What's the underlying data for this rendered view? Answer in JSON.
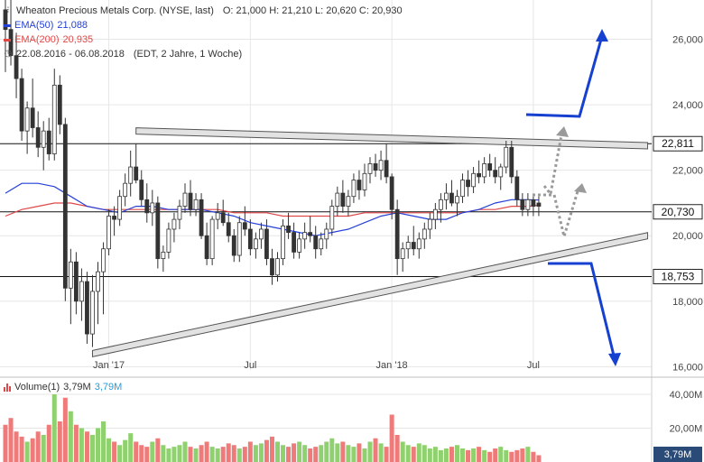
{
  "header": {
    "title": "Wheaton Precious Metals Corp. (NYSE, last)",
    "ohlc": "O: 21,000  H: 21,210  L: 20,620  C: 20,930",
    "ema50_label": "EMA(50)",
    "ema50_value": "21,088",
    "ema200_label": "EMA(200)",
    "ema200_value": "20,935",
    "range_label": "22.08.2016 - 06.08.2018",
    "range_info": "(EDT, 2 Jahre, 1 Woche)"
  },
  "volume_legend": {
    "label": "Volume(1)",
    "value1": "3,79M",
    "value2": "3,79M"
  },
  "colors": {
    "up": "#3aaa35",
    "down": "#e03535",
    "ema50": "#2540d8",
    "ema200": "#e04848",
    "arrow": "#1540d0",
    "axis_text": "#444444",
    "grid": "#e6e6e6",
    "vol_up": "#8fd16f",
    "vol_down": "#ef7a7a",
    "badge": "#2a4a78"
  },
  "chart_data": {
    "type": "candlestick",
    "title": "Wheaton Precious Metals Corp. (NYSE, last)",
    "yticks": [
      16,
      18,
      20,
      22,
      24,
      26
    ],
    "ytick_labels": [
      "16,000",
      "18,000",
      "20,000",
      "22,000",
      "24,000",
      "26,000"
    ],
    "ylim": [
      15.9,
      27.2
    ],
    "xtick_labels": [
      {
        "label": "Jan '17",
        "week": 19
      },
      {
        "label": "Jul",
        "week": 45
      },
      {
        "label": "Jan '18",
        "week": 71
      },
      {
        "label": "Jul",
        "week": 97
      }
    ],
    "horizontal_levels": [
      {
        "value": 22.811,
        "label": "22,811"
      },
      {
        "value": 20.73,
        "label": "20,730"
      },
      {
        "value": 18.753,
        "label": "18,753"
      }
    ],
    "trendlines": [
      {
        "name": "upper",
        "from": [
          24,
          23.2
        ],
        "to": [
          118,
          22.75
        ]
      },
      {
        "name": "lower",
        "from": [
          16,
          16.4
        ],
        "to": [
          118,
          20.0
        ]
      }
    ],
    "candles": [
      [
        0,
        26.9,
        28.3,
        25.0,
        26.3
      ],
      [
        1,
        26.3,
        27.6,
        25.2,
        25.5
      ],
      [
        2,
        25.5,
        26.2,
        24.2,
        24.8
      ],
      [
        3,
        24.8,
        25.1,
        22.9,
        23.2
      ],
      [
        4,
        23.2,
        24.1,
        22.5,
        23.9
      ],
      [
        5,
        23.9,
        24.8,
        23.0,
        23.3
      ],
      [
        6,
        23.3,
        23.8,
        22.4,
        22.7
      ],
      [
        7,
        22.7,
        23.5,
        22.0,
        23.2
      ],
      [
        8,
        23.2,
        23.6,
        22.3,
        22.5
      ],
      [
        9,
        22.5,
        25.1,
        22.3,
        24.6
      ],
      [
        10,
        24.6,
        24.9,
        23.1,
        23.4
      ],
      [
        11,
        23.4,
        23.6,
        18.0,
        18.4
      ],
      [
        12,
        18.4,
        19.6,
        17.3,
        19.2
      ],
      [
        13,
        19.2,
        19.5,
        17.6,
        18.0
      ],
      [
        14,
        18.0,
        19.0,
        17.4,
        18.6
      ],
      [
        15,
        18.6,
        18.9,
        16.7,
        17.0
      ],
      [
        16,
        17.0,
        18.8,
        16.6,
        18.3
      ],
      [
        17,
        18.3,
        19.2,
        17.3,
        18.9
      ],
      [
        18,
        18.9,
        19.8,
        17.6,
        19.6
      ],
      [
        19,
        19.6,
        20.8,
        19.4,
        20.6
      ],
      [
        20,
        20.6,
        20.9,
        20.0,
        20.5
      ],
      [
        21,
        20.5,
        21.4,
        20.3,
        21.2
      ],
      [
        22,
        21.2,
        21.9,
        20.9,
        21.6
      ],
      [
        23,
        21.6,
        22.6,
        21.2,
        22.1
      ],
      [
        24,
        22.1,
        22.8,
        21.6,
        21.7
      ],
      [
        25,
        21.7,
        22.0,
        20.9,
        21.1
      ],
      [
        26,
        21.1,
        21.6,
        20.4,
        20.7
      ],
      [
        27,
        20.7,
        21.4,
        20.3,
        21.0
      ],
      [
        28,
        21.0,
        21.2,
        19.0,
        19.3
      ],
      [
        29,
        19.3,
        19.7,
        18.9,
        19.5
      ],
      [
        30,
        19.5,
        20.4,
        19.3,
        20.2
      ],
      [
        31,
        20.2,
        20.7,
        19.8,
        20.5
      ],
      [
        32,
        20.5,
        21.1,
        20.2,
        20.9
      ],
      [
        33,
        20.9,
        21.6,
        20.7,
        21.3
      ],
      [
        34,
        21.3,
        21.7,
        20.6,
        20.8
      ],
      [
        35,
        20.8,
        21.3,
        20.6,
        21.1
      ],
      [
        36,
        21.1,
        21.3,
        19.9,
        20.0
      ],
      [
        37,
        20.0,
        20.4,
        19.1,
        19.3
      ],
      [
        38,
        19.3,
        20.6,
        19.1,
        20.5
      ],
      [
        39,
        20.5,
        21.0,
        20.2,
        20.7
      ],
      [
        40,
        20.7,
        21.1,
        20.3,
        20.4
      ],
      [
        41,
        20.4,
        20.7,
        19.8,
        20.0
      ],
      [
        42,
        20.0,
        20.2,
        19.2,
        19.4
      ],
      [
        43,
        19.4,
        20.6,
        19.2,
        20.4
      ],
      [
        44,
        20.4,
        20.9,
        20.0,
        20.2
      ],
      [
        45,
        20.2,
        20.5,
        19.4,
        19.6
      ],
      [
        46,
        19.6,
        20.1,
        19.3,
        19.9
      ],
      [
        47,
        19.9,
        20.4,
        19.6,
        20.2
      ],
      [
        48,
        20.2,
        20.5,
        19.1,
        19.3
      ],
      [
        49,
        19.3,
        19.6,
        18.5,
        18.8
      ],
      [
        50,
        18.8,
        19.5,
        18.6,
        19.3
      ],
      [
        51,
        19.3,
        20.5,
        19.1,
        20.3
      ],
      [
        52,
        20.3,
        20.7,
        19.9,
        20.1
      ],
      [
        53,
        20.1,
        20.4,
        19.3,
        19.5
      ],
      [
        54,
        19.5,
        20.1,
        19.3,
        19.9
      ],
      [
        55,
        19.9,
        20.4,
        19.6,
        20.1
      ],
      [
        56,
        20.1,
        20.6,
        19.8,
        20.0
      ],
      [
        57,
        20.0,
        20.3,
        19.3,
        19.6
      ],
      [
        58,
        19.6,
        20.1,
        19.4,
        19.9
      ],
      [
        59,
        19.9,
        20.4,
        19.6,
        20.2
      ],
      [
        60,
        20.2,
        21.1,
        20.0,
        20.9
      ],
      [
        61,
        20.9,
        21.5,
        20.6,
        21.3
      ],
      [
        62,
        21.3,
        21.7,
        20.7,
        20.9
      ],
      [
        63,
        20.9,
        21.4,
        20.6,
        21.2
      ],
      [
        64,
        21.2,
        21.9,
        21.0,
        21.7
      ],
      [
        65,
        21.7,
        22.0,
        21.1,
        21.4
      ],
      [
        66,
        21.4,
        22.2,
        21.2,
        21.9
      ],
      [
        67,
        21.9,
        22.4,
        21.6,
        22.2
      ],
      [
        68,
        22.2,
        22.5,
        21.8,
        22.0
      ],
      [
        69,
        22.0,
        22.6,
        21.7,
        22.3
      ],
      [
        70,
        22.3,
        22.8,
        21.6,
        21.8
      ],
      [
        71,
        21.8,
        21.9,
        20.5,
        20.8
      ],
      [
        72,
        20.8,
        21.1,
        18.8,
        19.3
      ],
      [
        73,
        19.3,
        19.8,
        18.9,
        19.6
      ],
      [
        74,
        19.6,
        20.0,
        19.3,
        19.8
      ],
      [
        75,
        19.8,
        20.3,
        19.4,
        19.6
      ],
      [
        76,
        19.6,
        20.1,
        19.3,
        19.9
      ],
      [
        77,
        19.9,
        20.4,
        19.6,
        20.2
      ],
      [
        78,
        20.2,
        20.7,
        19.9,
        20.5
      ],
      [
        79,
        20.5,
        21.0,
        20.2,
        20.8
      ],
      [
        80,
        20.8,
        21.3,
        20.4,
        21.1
      ],
      [
        81,
        21.1,
        21.6,
        20.8,
        21.3
      ],
      [
        82,
        21.3,
        21.7,
        20.9,
        21.0
      ],
      [
        83,
        21.0,
        21.4,
        20.6,
        21.2
      ],
      [
        84,
        21.2,
        21.9,
        21.0,
        21.7
      ],
      [
        85,
        21.7,
        22.0,
        21.2,
        21.5
      ],
      [
        86,
        21.5,
        22.1,
        21.3,
        21.9
      ],
      [
        87,
        21.9,
        22.3,
        21.6,
        21.8
      ],
      [
        88,
        21.8,
        22.4,
        21.6,
        22.2
      ],
      [
        89,
        22.2,
        22.5,
        21.8,
        22.0
      ],
      [
        90,
        22.0,
        22.4,
        21.6,
        21.8
      ],
      [
        91,
        21.8,
        22.2,
        21.4,
        22.1
      ],
      [
        92,
        22.1,
        22.9,
        21.9,
        22.7
      ],
      [
        93,
        22.7,
        22.9,
        21.6,
        21.8
      ],
      [
        94,
        21.8,
        22.0,
        20.9,
        21.1
      ],
      [
        95,
        21.1,
        21.3,
        20.6,
        20.8
      ],
      [
        96,
        20.8,
        21.3,
        20.6,
        21.1
      ],
      [
        97,
        21.1,
        21.2,
        20.6,
        20.9
      ],
      [
        98,
        21.0,
        21.2,
        20.6,
        20.9
      ]
    ],
    "ema50": [
      [
        0,
        21.3
      ],
      [
        3,
        21.6
      ],
      [
        6,
        21.6
      ],
      [
        9,
        21.5
      ],
      [
        12,
        21.2
      ],
      [
        15,
        20.9
      ],
      [
        18,
        20.8
      ],
      [
        21,
        20.7
      ],
      [
        24,
        20.9
      ],
      [
        27,
        20.9
      ],
      [
        30,
        20.8
      ],
      [
        33,
        20.8
      ],
      [
        36,
        20.8
      ],
      [
        39,
        20.7
      ],
      [
        42,
        20.6
      ],
      [
        45,
        20.4
      ],
      [
        48,
        20.3
      ],
      [
        51,
        20.2
      ],
      [
        54,
        20.1
      ],
      [
        57,
        20.0
      ],
      [
        60,
        20.1
      ],
      [
        63,
        20.2
      ],
      [
        66,
        20.4
      ],
      [
        69,
        20.6
      ],
      [
        72,
        20.7
      ],
      [
        75,
        20.6
      ],
      [
        78,
        20.5
      ],
      [
        81,
        20.5
      ],
      [
        84,
        20.7
      ],
      [
        87,
        20.8
      ],
      [
        90,
        21.0
      ],
      [
        93,
        21.1
      ],
      [
        96,
        21.1
      ],
      [
        98,
        21.09
      ]
    ],
    "ema200": [
      [
        0,
        20.6
      ],
      [
        3,
        20.8
      ],
      [
        6,
        20.9
      ],
      [
        9,
        21.0
      ],
      [
        12,
        21.0
      ],
      [
        15,
        20.9
      ],
      [
        18,
        20.8
      ],
      [
        21,
        20.8
      ],
      [
        24,
        20.8
      ],
      [
        27,
        20.8
      ],
      [
        30,
        20.8
      ],
      [
        33,
        20.8
      ],
      [
        36,
        20.8
      ],
      [
        39,
        20.8
      ],
      [
        42,
        20.7
      ],
      [
        45,
        20.7
      ],
      [
        48,
        20.7
      ],
      [
        51,
        20.6
      ],
      [
        54,
        20.6
      ],
      [
        57,
        20.6
      ],
      [
        60,
        20.6
      ],
      [
        63,
        20.6
      ],
      [
        66,
        20.7
      ],
      [
        69,
        20.7
      ],
      [
        72,
        20.7
      ],
      [
        75,
        20.7
      ],
      [
        78,
        20.7
      ],
      [
        81,
        20.7
      ],
      [
        84,
        20.7
      ],
      [
        87,
        20.8
      ],
      [
        90,
        20.8
      ],
      [
        93,
        20.9
      ],
      [
        96,
        20.9
      ],
      [
        98,
        20.93
      ]
    ],
    "volume": {
      "yticks": [
        20,
        40
      ],
      "ytick_labels": [
        "20,00M",
        "40,00M"
      ],
      "last_label": "3,79M",
      "values": [
        22,
        26,
        18,
        15,
        12,
        14,
        18,
        16,
        22,
        40,
        24,
        38,
        30,
        22,
        20,
        18,
        16,
        20,
        24,
        14,
        12,
        10,
        13,
        17,
        12,
        10,
        9,
        12,
        14,
        10,
        8,
        9,
        10,
        12,
        9,
        8,
        10,
        12,
        9,
        8,
        9,
        11,
        10,
        8,
        9,
        12,
        10,
        11,
        13,
        15,
        12,
        10,
        9,
        11,
        12,
        10,
        8,
        9,
        10,
        12,
        14,
        11,
        12,
        10,
        9,
        11,
        8,
        12,
        14,
        11,
        9,
        28,
        16,
        12,
        10,
        9,
        11,
        10,
        8,
        9,
        7,
        8,
        9,
        10,
        8,
        7,
        8,
        9,
        7,
        6,
        8,
        9,
        7,
        6,
        7,
        8,
        9,
        6,
        4
      ]
    }
  }
}
